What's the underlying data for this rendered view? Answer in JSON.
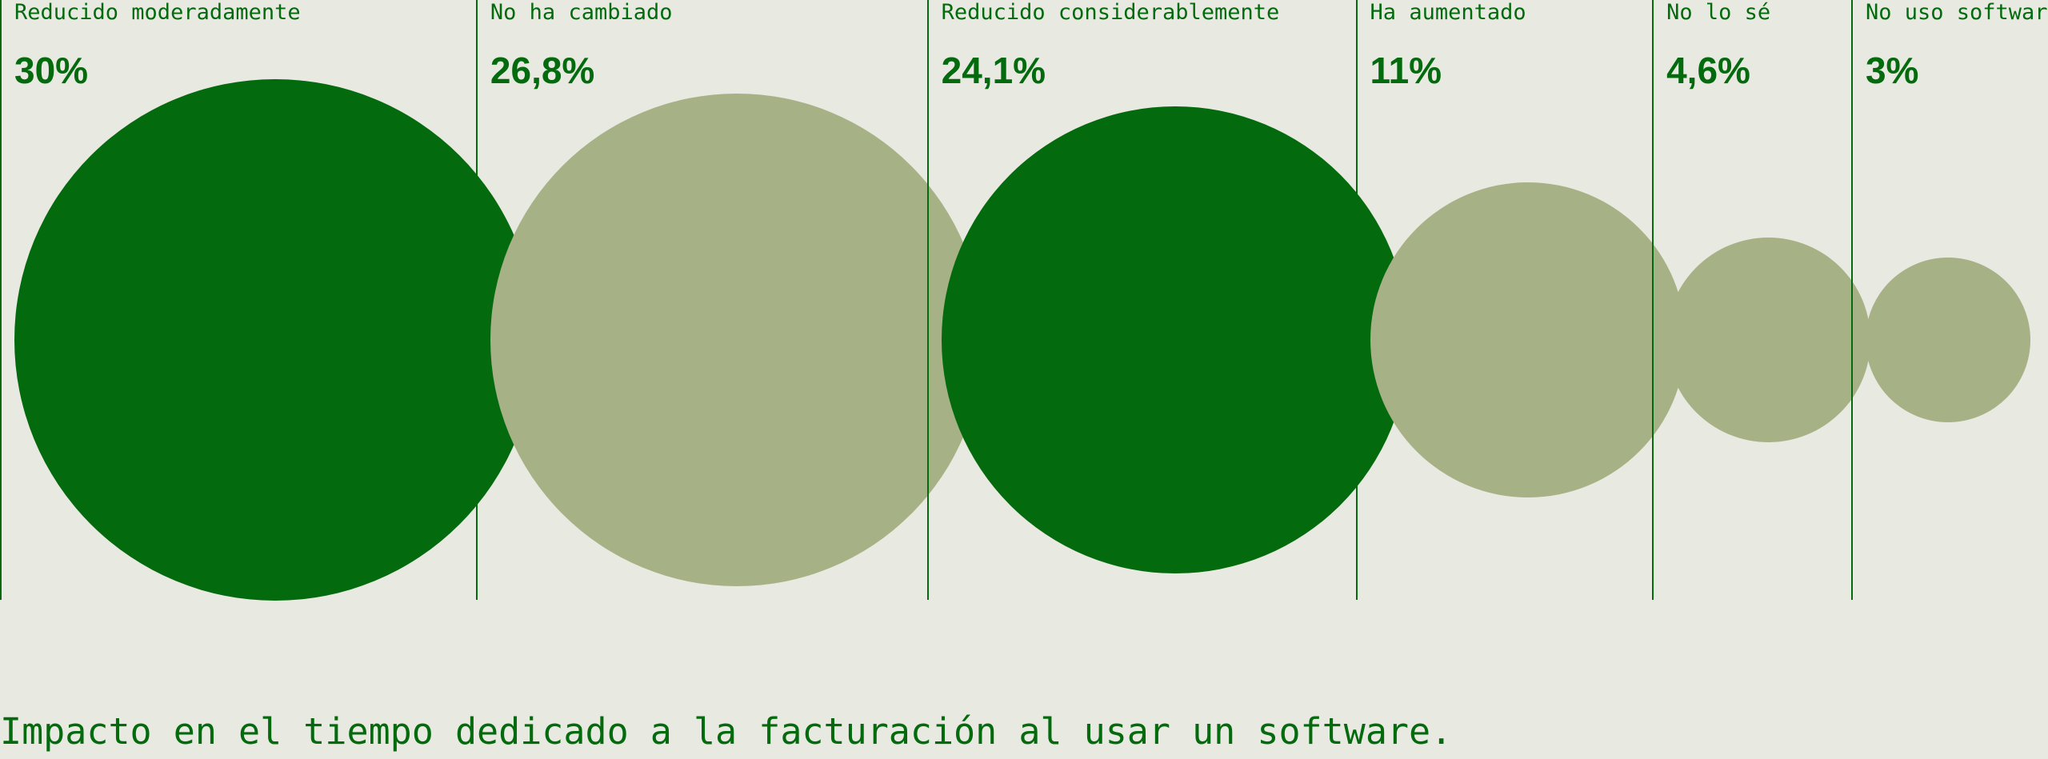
{
  "chart_data": {
    "type": "bubble",
    "categories": [
      "Reducido moderadamente",
      "No ha cambiado",
      "Reducido considerablemente",
      "Ha aumentado",
      "No lo sé",
      "No uso software"
    ],
    "values": [
      30,
      26.8,
      24.1,
      11,
      4.6,
      3
    ],
    "value_labels": [
      "30%",
      "26,8%",
      "24,1%",
      "11%",
      "4,6%",
      "3%"
    ],
    "colors": [
      "#036a0e",
      "#a6b186",
      "#036a0e",
      "#a6b186",
      "#a6b186",
      "#a6b186"
    ],
    "caption": "Impacto en el tiempo dedicado a la facturación al usar un software.",
    "legend": "none",
    "grid": false
  }
}
